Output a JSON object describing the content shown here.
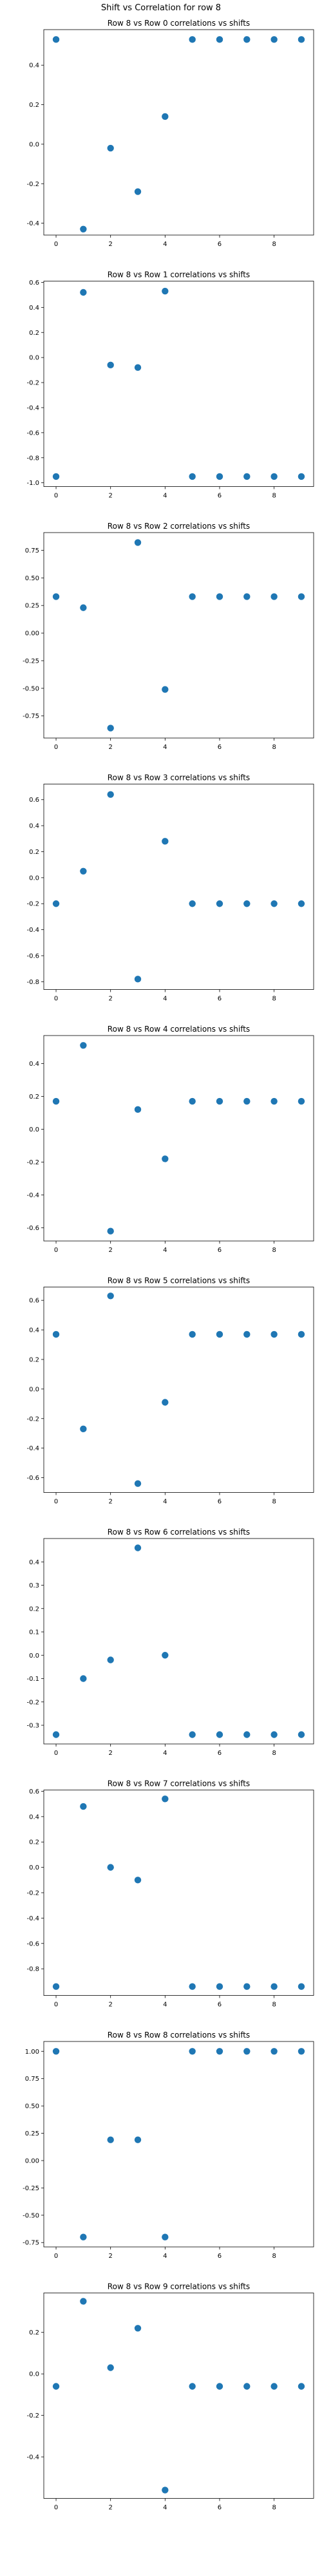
{
  "figure": {
    "suptitle": "Shift vs Correlation for row 8"
  },
  "style": {
    "point_color": "#1f77b4",
    "axes_color": "#000000",
    "background": "#ffffff"
  },
  "chart_data": [
    {
      "type": "scatter",
      "title": "Row 8 vs Row 0 correlations vs shifts",
      "x": [
        0,
        1,
        2,
        3,
        4,
        5,
        6,
        7,
        8,
        9
      ],
      "y": [
        0.53,
        -0.43,
        -0.02,
        -0.24,
        0.14,
        0.53,
        0.53,
        0.53,
        0.53,
        0.53
      ],
      "ylim": [
        -0.46,
        0.58
      ],
      "xticks": [
        0,
        2,
        4,
        6,
        8
      ],
      "yticks": [
        -0.4,
        -0.2,
        0.0,
        0.2,
        0.4
      ],
      "ytick_labels": [
        "-0.4",
        "-0.2",
        "0.0",
        "0.2",
        "0.4"
      ]
    },
    {
      "type": "scatter",
      "title": "Row 8 vs Row 1 correlations vs shifts",
      "x": [
        0,
        1,
        2,
        3,
        4,
        5,
        6,
        7,
        8,
        9
      ],
      "y": [
        -0.95,
        0.52,
        -0.06,
        -0.08,
        0.53,
        -0.95,
        -0.95,
        -0.95,
        -0.95,
        -0.95
      ],
      "ylim": [
        -1.03,
        0.61
      ],
      "xticks": [
        0,
        2,
        4,
        6,
        8
      ],
      "yticks": [
        -1.0,
        -0.8,
        -0.6,
        -0.4,
        -0.2,
        0.0,
        0.2,
        0.4,
        0.6
      ],
      "ytick_labels": [
        "-1.0",
        "-0.8",
        "-0.6",
        "-0.4",
        "-0.2",
        "0.0",
        "0.2",
        "0.4",
        "0.6"
      ]
    },
    {
      "type": "scatter",
      "title": "Row 8 vs Row 2 correlations vs shifts",
      "x": [
        0,
        1,
        2,
        3,
        4,
        5,
        6,
        7,
        8,
        9
      ],
      "y": [
        0.33,
        0.23,
        -0.86,
        0.82,
        -0.51,
        0.33,
        0.33,
        0.33,
        0.33,
        0.33
      ],
      "ylim": [
        -0.95,
        0.91
      ],
      "xticks": [
        0,
        2,
        4,
        6,
        8
      ],
      "yticks": [
        -0.75,
        -0.5,
        -0.25,
        0.0,
        0.25,
        0.5,
        0.75
      ],
      "ytick_labels": [
        "-0.75",
        "-0.50",
        "-0.25",
        "0.00",
        "0.25",
        "0.50",
        "0.75"
      ]
    },
    {
      "type": "scatter",
      "title": "Row 8 vs Row 3 correlations vs shifts",
      "x": [
        0,
        1,
        2,
        3,
        4,
        5,
        6,
        7,
        8,
        9
      ],
      "y": [
        -0.2,
        0.05,
        0.64,
        -0.78,
        0.28,
        -0.2,
        -0.2,
        -0.2,
        -0.2,
        -0.2
      ],
      "ylim": [
        -0.86,
        0.72
      ],
      "xticks": [
        0,
        2,
        4,
        6,
        8
      ],
      "yticks": [
        -0.8,
        -0.6,
        -0.4,
        -0.2,
        0.0,
        0.2,
        0.4,
        0.6
      ],
      "ytick_labels": [
        "-0.8",
        "-0.6",
        "-0.4",
        "-0.2",
        "0.0",
        "0.2",
        "0.4",
        "0.6"
      ]
    },
    {
      "type": "scatter",
      "title": "Row 8 vs Row 4 correlations vs shifts",
      "x": [
        0,
        1,
        2,
        3,
        4,
        5,
        6,
        7,
        8,
        9
      ],
      "y": [
        0.17,
        0.51,
        -0.62,
        0.12,
        -0.18,
        0.17,
        0.17,
        0.17,
        0.17,
        0.17
      ],
      "ylim": [
        -0.68,
        0.57
      ],
      "xticks": [
        0,
        2,
        4,
        6,
        8
      ],
      "yticks": [
        -0.6,
        -0.4,
        -0.2,
        0.0,
        0.2,
        0.4
      ],
      "ytick_labels": [
        "-0.6",
        "-0.4",
        "-0.2",
        "0.0",
        "0.2",
        "0.4"
      ]
    },
    {
      "type": "scatter",
      "title": "Row 8 vs Row 5 correlations vs shifts",
      "x": [
        0,
        1,
        2,
        3,
        4,
        5,
        6,
        7,
        8,
        9
      ],
      "y": [
        0.37,
        -0.27,
        0.63,
        -0.64,
        -0.09,
        0.37,
        0.37,
        0.37,
        0.37,
        0.37
      ],
      "ylim": [
        -0.7,
        0.69
      ],
      "xticks": [
        0,
        2,
        4,
        6,
        8
      ],
      "yticks": [
        -0.6,
        -0.4,
        -0.2,
        0.0,
        0.2,
        0.4,
        0.6
      ],
      "ytick_labels": [
        "-0.6",
        "-0.4",
        "-0.2",
        "0.0",
        "0.2",
        "0.4",
        "0.6"
      ]
    },
    {
      "type": "scatter",
      "title": "Row 8 vs Row 6 correlations vs shifts",
      "x": [
        0,
        1,
        2,
        3,
        4,
        5,
        6,
        7,
        8,
        9
      ],
      "y": [
        -0.34,
        -0.1,
        -0.02,
        0.46,
        0.0,
        -0.34,
        -0.34,
        -0.34,
        -0.34,
        -0.34
      ],
      "ylim": [
        -0.38,
        0.5
      ],
      "xticks": [
        0,
        2,
        4,
        6,
        8
      ],
      "yticks": [
        -0.3,
        -0.2,
        -0.1,
        0.0,
        0.1,
        0.2,
        0.3,
        0.4
      ],
      "ytick_labels": [
        "-0.3",
        "-0.2",
        "-0.1",
        "0.0",
        "0.1",
        "0.2",
        "0.3",
        "0.4"
      ]
    },
    {
      "type": "scatter",
      "title": "Row 8 vs Row 7 correlations vs shifts",
      "x": [
        0,
        1,
        2,
        3,
        4,
        5,
        6,
        7,
        8,
        9
      ],
      "y": [
        -0.94,
        0.48,
        0.0,
        -0.1,
        0.54,
        -0.94,
        -0.94,
        -0.94,
        -0.94,
        -0.94
      ],
      "ylim": [
        -1.01,
        0.61
      ],
      "xticks": [
        0,
        2,
        4,
        6,
        8
      ],
      "yticks": [
        -0.8,
        -0.6,
        -0.4,
        -0.2,
        0.0,
        0.2,
        0.4,
        0.6
      ],
      "ytick_labels": [
        "-0.8",
        "-0.6",
        "-0.4",
        "-0.2",
        "0.0",
        "0.2",
        "0.4",
        "0.6"
      ]
    },
    {
      "type": "scatter",
      "title": "Row 8 vs Row 8 correlations vs shifts",
      "x": [
        0,
        1,
        2,
        3,
        4,
        5,
        6,
        7,
        8,
        9
      ],
      "y": [
        1.0,
        -0.7,
        0.19,
        0.19,
        -0.7,
        1.0,
        1.0,
        1.0,
        1.0,
        1.0
      ],
      "ylim": [
        -0.79,
        1.09
      ],
      "xticks": [
        0,
        2,
        4,
        6,
        8
      ],
      "yticks": [
        -0.75,
        -0.5,
        -0.25,
        0.0,
        0.25,
        0.5,
        0.75,
        1.0
      ],
      "ytick_labels": [
        "-0.75",
        "-0.50",
        "-0.25",
        "0.00",
        "0.25",
        "0.50",
        "0.75",
        "1.00"
      ]
    },
    {
      "type": "scatter",
      "title": "Row 8 vs Row 9 correlations vs shifts",
      "x": [
        0,
        1,
        2,
        3,
        4,
        5,
        6,
        7,
        8,
        9
      ],
      "y": [
        -0.06,
        0.35,
        0.03,
        0.22,
        -0.56,
        -0.06,
        -0.06,
        -0.06,
        -0.06,
        -0.06
      ],
      "ylim": [
        -0.6,
        0.39
      ],
      "xticks": [
        0,
        2,
        4,
        6,
        8
      ],
      "yticks": [
        -0.4,
        -0.2,
        0.0,
        0.2
      ],
      "ytick_labels": [
        "-0.4",
        "-0.2",
        "0.0",
        "0.2"
      ]
    }
  ]
}
